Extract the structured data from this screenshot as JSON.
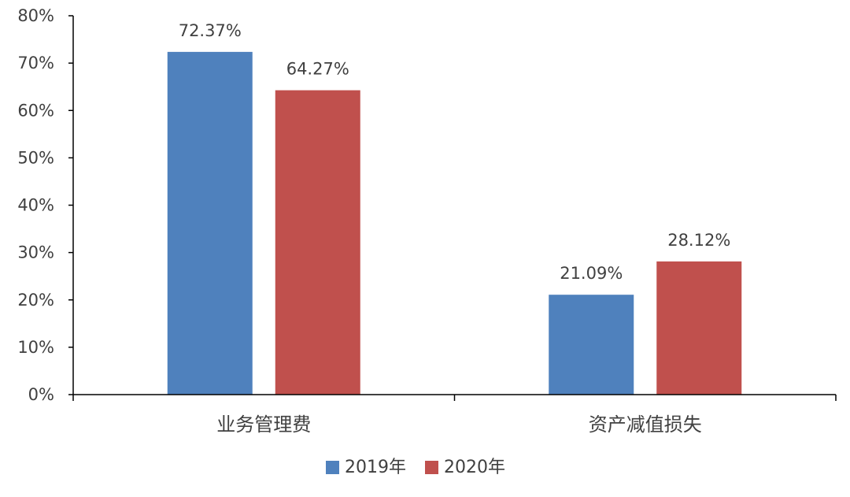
{
  "chart_data": {
    "type": "bar",
    "categories": [
      "业务管理费",
      "资产减值损失"
    ],
    "series": [
      {
        "name": "2019年",
        "values": [
          72.37,
          21.09
        ],
        "labels": [
          "72.37%",
          "21.09%"
        ],
        "color": "#4F81BD"
      },
      {
        "name": "2020年",
        "values": [
          64.27,
          28.12
        ],
        "labels": [
          "64.27%",
          "28.12%"
        ],
        "color": "#C0504D"
      }
    ],
    "yticks": [
      {
        "value": 0,
        "label": "0%"
      },
      {
        "value": 10,
        "label": "10%"
      },
      {
        "value": 20,
        "label": "20%"
      },
      {
        "value": 30,
        "label": "30%"
      },
      {
        "value": 40,
        "label": "40%"
      },
      {
        "value": 50,
        "label": "50%"
      },
      {
        "value": 60,
        "label": "60%"
      },
      {
        "value": 70,
        "label": "70%"
      },
      {
        "value": 80,
        "label": "80%"
      }
    ],
    "ylim": [
      0,
      80
    ],
    "title": "",
    "xlabel": "",
    "ylabel": "",
    "grid": false,
    "legend_position": "bottom"
  }
}
